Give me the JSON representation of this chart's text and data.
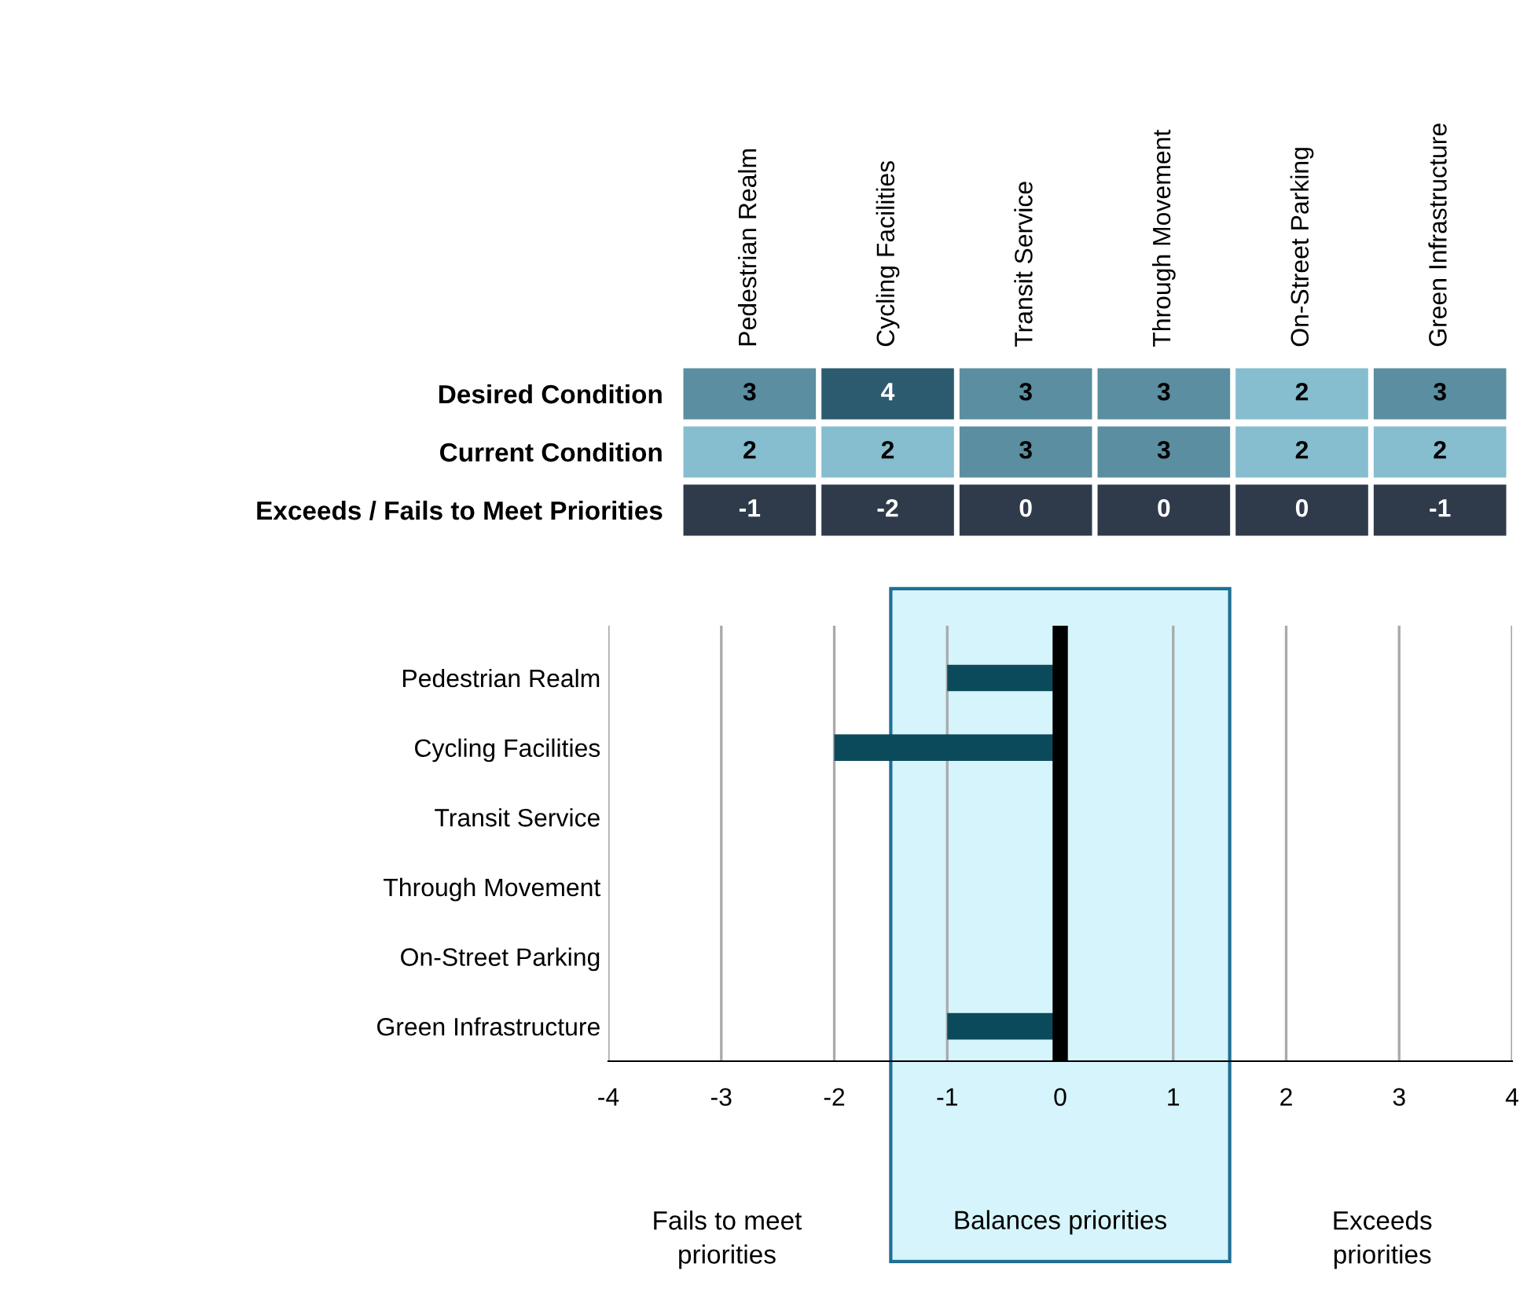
{
  "chart_data": [
    {
      "type": "heatmap",
      "categories": [
        "Pedestrian Realm",
        "Cycling Facilities",
        "Transit Service",
        "Through Movement",
        "On-Street Parking",
        "Green Infrastructure"
      ],
      "y_categories": [
        "Desired Condition",
        "Current Condition",
        "Exceeds / Fails to Meet Priorities"
      ],
      "cells": [
        [
          3,
          4,
          3,
          3,
          2,
          3
        ],
        [
          2,
          2,
          3,
          3,
          2,
          2
        ],
        [
          -1,
          -2,
          0,
          0,
          0,
          -1
        ]
      ],
      "colors": [
        [
          "#5a8ea0",
          "#2c5b70",
          "#5a8ea0",
          "#5a8ea0",
          "#86bdcf",
          "#5a8ea0"
        ],
        [
          "#86bdcf",
          "#86bdcf",
          "#5a8ea0",
          "#5a8ea0",
          "#86bdcf",
          "#86bdcf"
        ],
        [
          "#2f3b4a",
          "#2f3b4a",
          "#2f3b4a",
          "#2f3b4a",
          "#2f3b4a",
          "#2f3b4a"
        ]
      ],
      "data_labels": true
    },
    {
      "type": "bar",
      "orientation": "horizontal",
      "categories": [
        "Pedestrian Realm",
        "Cycling Facilities",
        "Transit Service",
        "Through Movement",
        "On-Street Parking",
        "Green Infrastructure"
      ],
      "values": [
        -1,
        -2,
        0,
        0,
        0,
        -1
      ],
      "color": "#0b4a5a",
      "xlim": [
        -4,
        4
      ],
      "xticks": [
        -4,
        -3,
        -2,
        -1,
        0,
        1,
        2,
        3,
        4
      ],
      "grid": "x",
      "ref_lines": [
        {
          "axis": "x",
          "value": 0,
          "color": "#000000"
        }
      ],
      "bands": [
        {
          "axis": "x",
          "from": -1.5,
          "to": 1.5,
          "label": "Balances priorities",
          "color": "#d6f4fb"
        }
      ],
      "annotations": [
        "Fails to meet\npriorities",
        "Exceeds\npriorities"
      ]
    }
  ]
}
